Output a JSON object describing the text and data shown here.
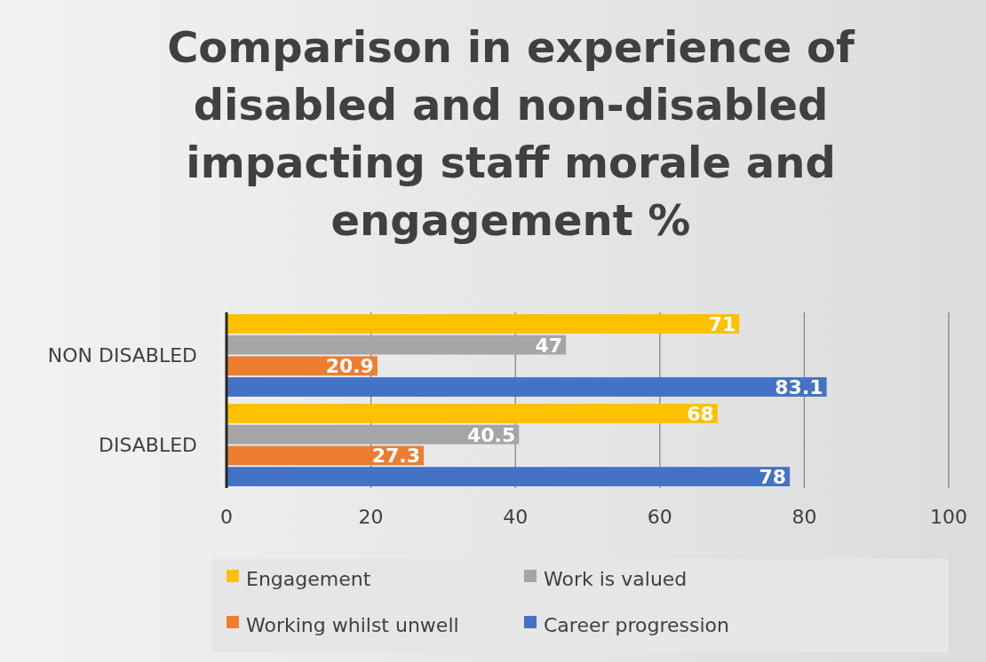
{
  "chart_data": {
    "type": "bar",
    "orientation": "horizontal",
    "title": "Comparison in experience of disabled and non-disabled impacting staff morale and engagement %",
    "categories": [
      "NON DISABLED",
      "DISABLED"
    ],
    "series": [
      {
        "name": "Engagement",
        "color": "#ffc000",
        "values": [
          71,
          68
        ]
      },
      {
        "name": "Work is valued",
        "color": "#a5a5a5",
        "values": [
          47,
          40.5
        ]
      },
      {
        "name": "Working whilst unwell",
        "color": "#ed7d31",
        "values": [
          20.9,
          27.3
        ]
      },
      {
        "name": "Career progression",
        "color": "#4472c4",
        "values": [
          83.1,
          78
        ]
      }
    ],
    "xlim": [
      0,
      100
    ],
    "xticks": [
      0,
      20,
      40,
      60,
      80,
      100
    ],
    "grid": "x",
    "legend": "bottom",
    "data_labels": true
  }
}
